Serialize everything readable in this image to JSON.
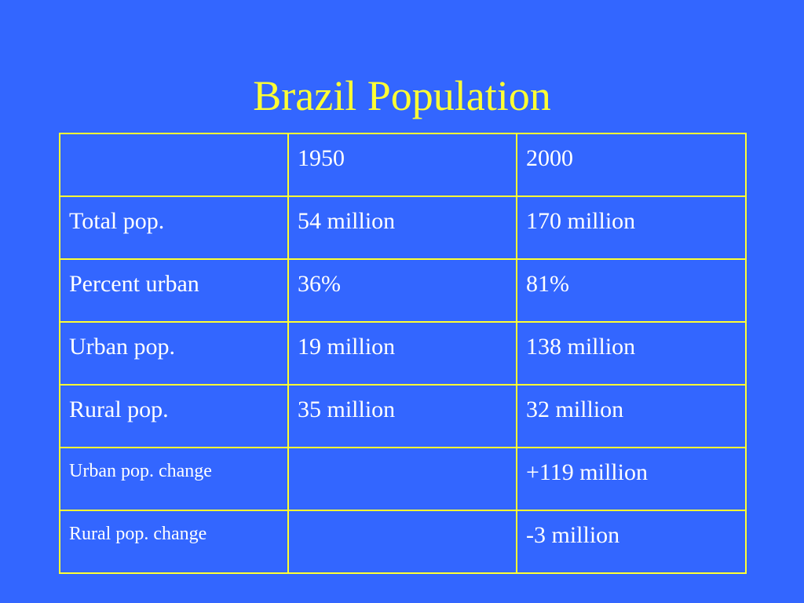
{
  "slide": {
    "title": "Brazil Population"
  },
  "table": {
    "header": [
      "",
      "1950",
      "2000"
    ],
    "rows": [
      [
        "Total pop.",
        "54 million",
        "170 million"
      ],
      [
        "Percent urban",
        "36%",
        "81%"
      ],
      [
        "Urban pop.",
        "19 million",
        "138 million"
      ],
      [
        "Rural pop.",
        "35 million",
        "32 million"
      ],
      [
        "Urban pop. change",
        "",
        "+119 million"
      ],
      [
        "Rural pop. change",
        "",
        "-3 million"
      ]
    ]
  },
  "colors": {
    "background": "#3366ff",
    "title": "#ffff33",
    "border": "#ffff33",
    "cell_text": "#ffffff"
  }
}
